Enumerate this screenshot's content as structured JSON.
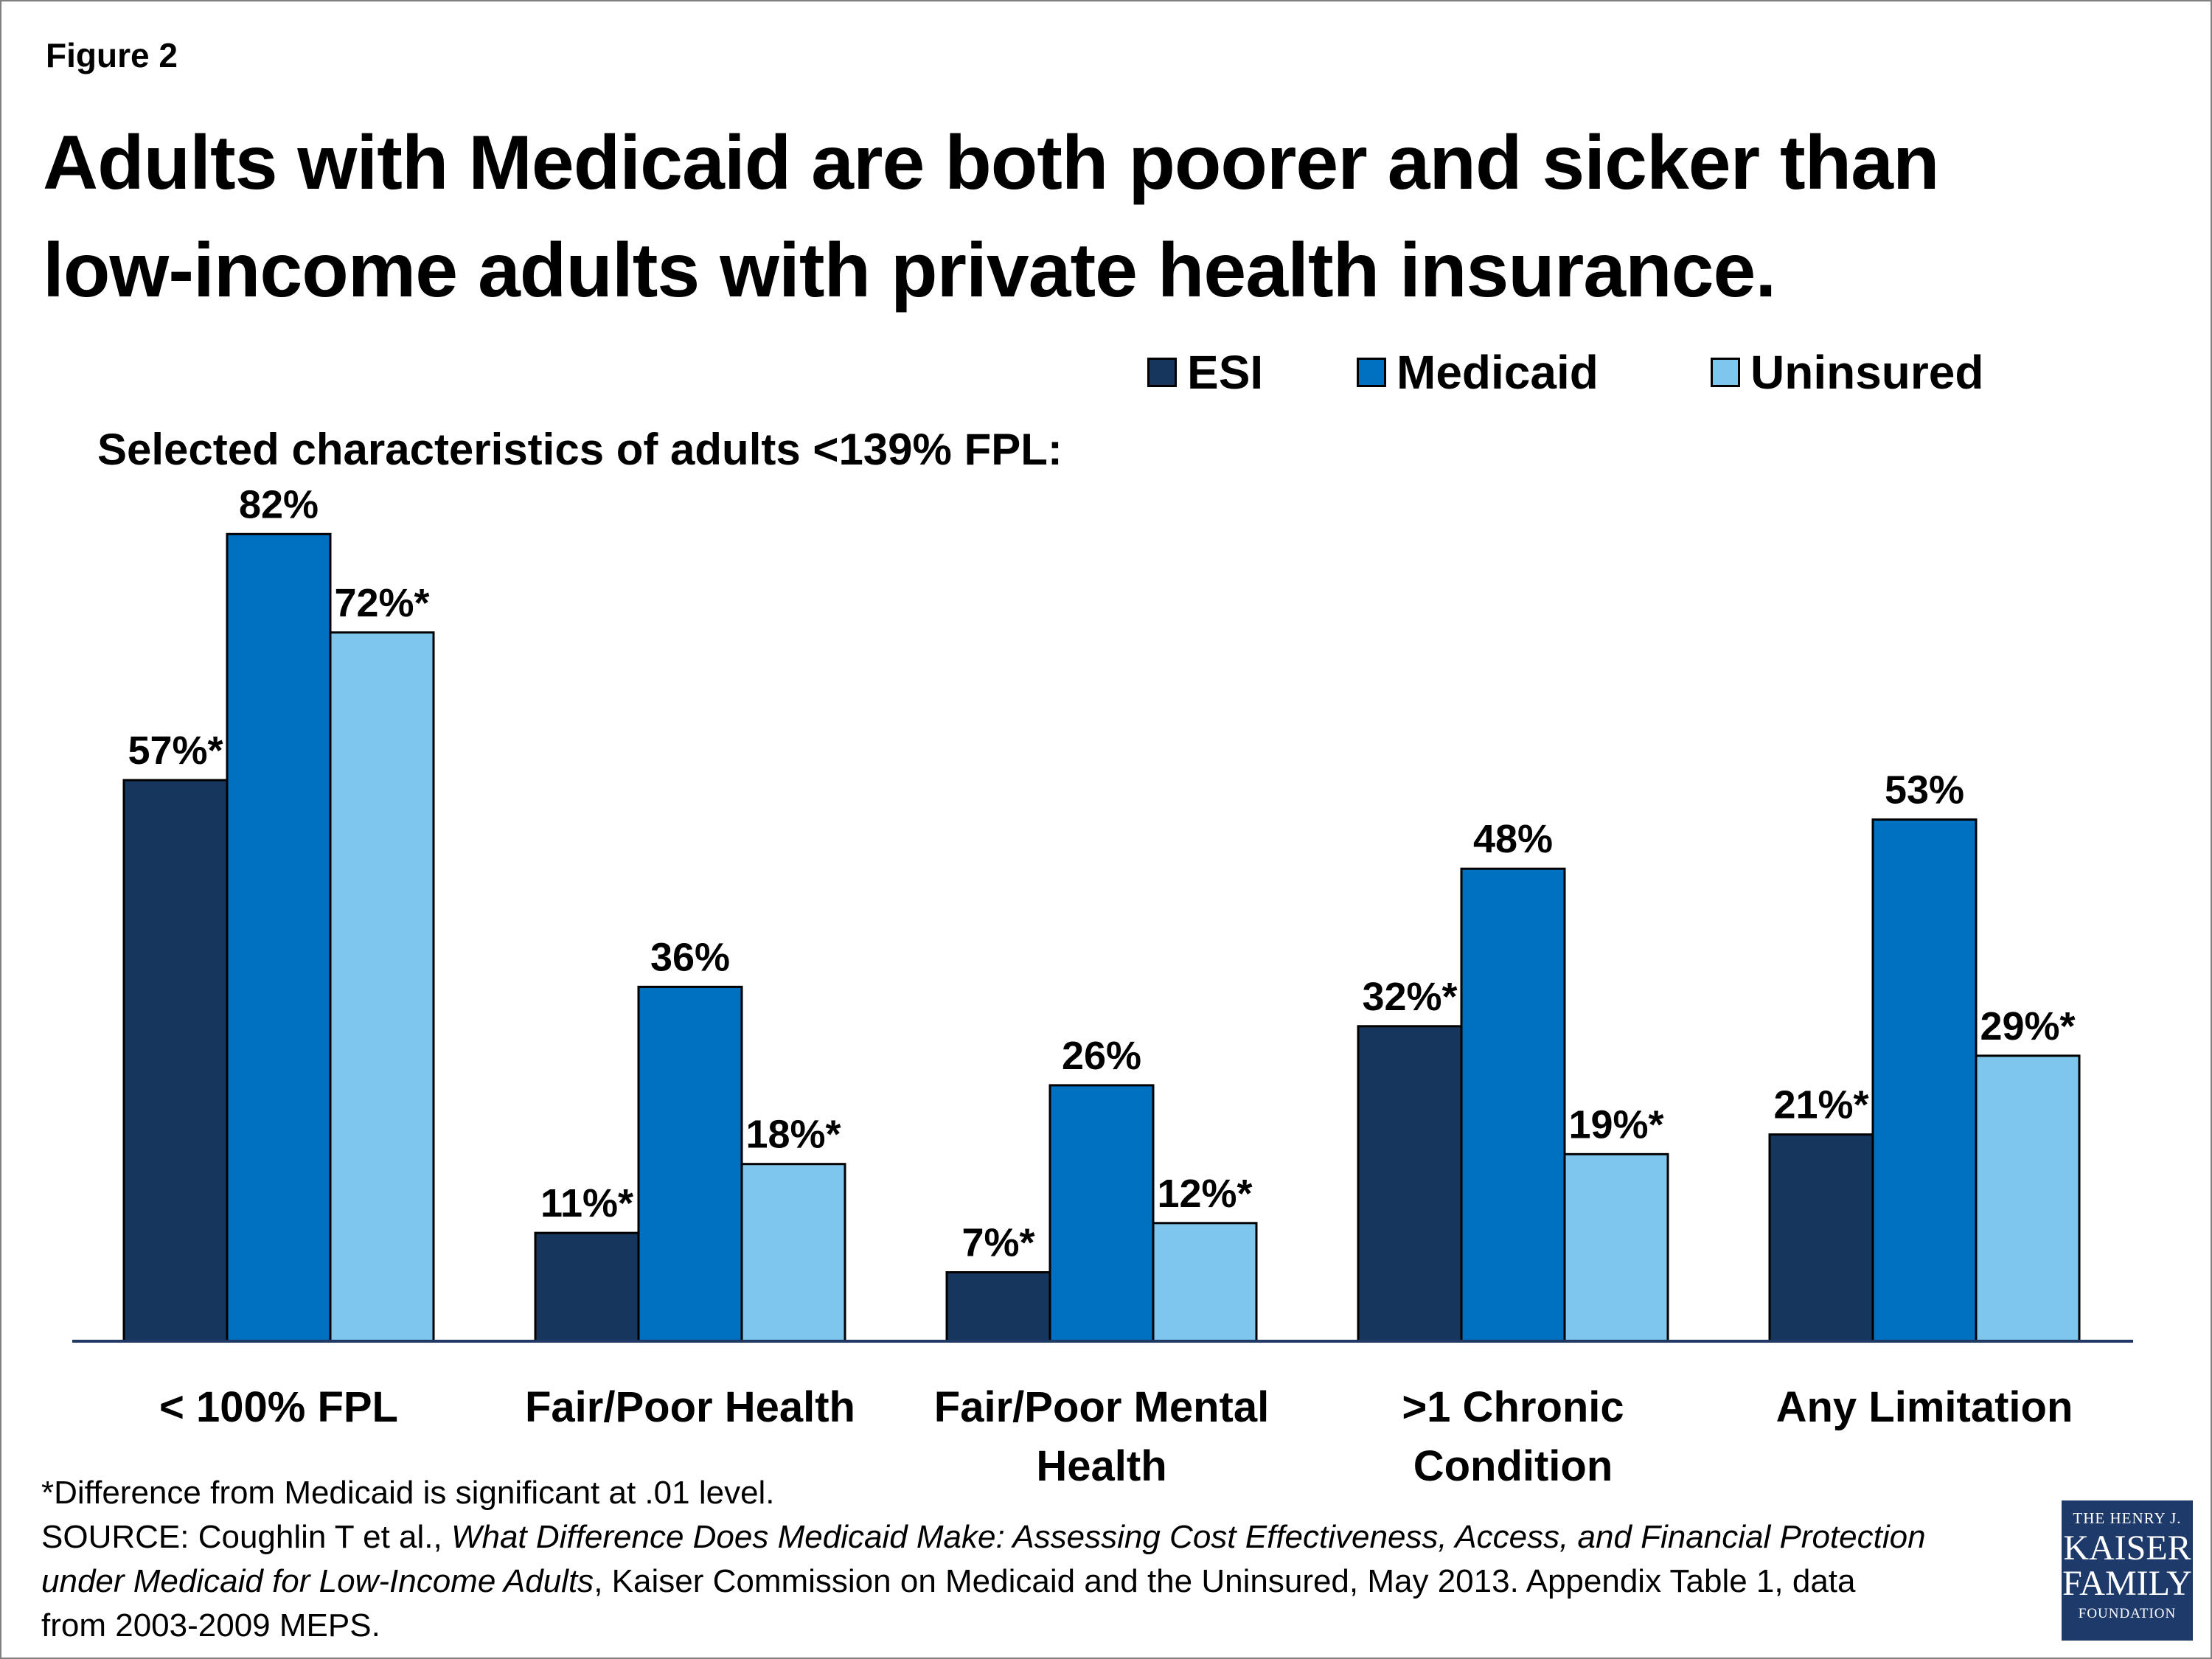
{
  "figure_label": "Figure 2",
  "title_line1": "Adults with Medicaid are both poorer and sicker than",
  "title_line2": "low-income adults with private health insurance.",
  "subtitle": "Selected characteristics of adults <139% FPL:",
  "colors": {
    "ESI": "#17365d",
    "Medicaid": "#0070c0",
    "Uninsured": "#7fc6ed",
    "axis": "#1f3864"
  },
  "legend": [
    {
      "label": "ESI",
      "color": "#17365d"
    },
    {
      "label": "Medicaid",
      "color": "#0070c0"
    },
    {
      "label": "Uninsured",
      "color": "#7fc6ed"
    }
  ],
  "chart_data": {
    "type": "bar",
    "title": "Adults with Medicaid are both poorer and sicker than low-income adults with private health insurance.",
    "subtitle": "Selected characteristics of adults <139% FPL:",
    "xlabel": "",
    "ylabel": "",
    "ylim": [
      0,
      100
    ],
    "grid": false,
    "legend_position": "top-right",
    "categories": [
      [
        "< 100% FPL"
      ],
      [
        "Fair/Poor Health"
      ],
      [
        "Fair/Poor Mental",
        "Health"
      ],
      [
        ">1 Chronic",
        "Condition"
      ],
      [
        "Any Limitation"
      ]
    ],
    "series": [
      {
        "name": "ESI",
        "values": [
          57,
          11,
          7,
          32,
          21
        ],
        "labels": [
          "57%*",
          "11%*",
          "7%*",
          "32%*",
          "21%*"
        ]
      },
      {
        "name": "Medicaid",
        "values": [
          82,
          36,
          26,
          48,
          53
        ],
        "labels": [
          "82%",
          "36%",
          "26%",
          "48%",
          "53%"
        ]
      },
      {
        "name": "Uninsured",
        "values": [
          72,
          18,
          12,
          19,
          29
        ],
        "labels": [
          "72%*",
          "18%*",
          "12%*",
          "19%*",
          "29%*"
        ]
      }
    ]
  },
  "footnote": {
    "significance": "*Difference from Medicaid is significant at .01 level.",
    "source_prefix": "SOURCE: Coughlin T et al., ",
    "source_title_part1": "What Difference Does Medicaid Make: Assessing Cost Effectiveness, Access, and Financial Protection",
    "source_title_part2": "under Medicaid for Low-Income Adults",
    "source_suffix": ", Kaiser Commission on Medicaid and the Uninsured, May 2013. Appendix Table 1, data",
    "source_line4": "from 2003-2009 MEPS."
  },
  "logo": {
    "line1": "THE HENRY J.",
    "line2": "KAISER",
    "line3": "FAMILY",
    "line4": "FOUNDATION"
  }
}
